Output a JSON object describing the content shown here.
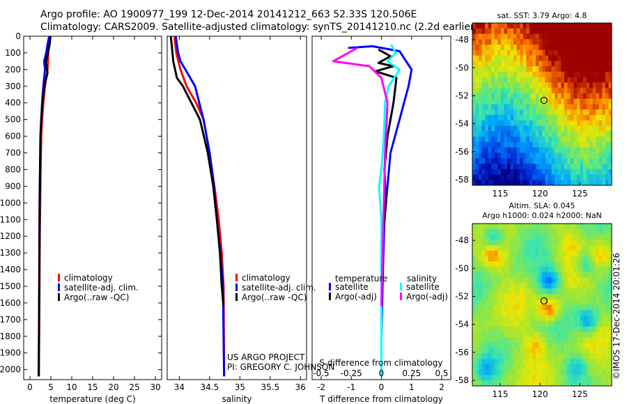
{
  "header": {
    "line1": "Argo profile: AO 1900977_199 12-Dec-2014 20141212_663 52.33S 120.506E",
    "line2": "Climatology: CARS2009. Satellite-adjusted climatology: synTS_20141210.nc (2.2d earlier)"
  },
  "colors": {
    "climatology": "#ff0000",
    "satellite": "#0000ff",
    "argo": "#000000",
    "satellite_salinity": "#00ffff",
    "argo_salinity": "#ff00ff"
  },
  "notes": {
    "project": "US ARGO PROJECT",
    "pi": "PI: GREGORY C. JOHNSON",
    "credit": "©IMOS 17-Dec-2014 20:01:26"
  },
  "chart_data": [
    {
      "type": "line",
      "id": "temperature",
      "xlabel": "temperature (deg C)",
      "ylabel": "",
      "xlim": [
        -1.5,
        31.5
      ],
      "ylim": [
        2060,
        0
      ],
      "xticks": [
        0,
        5,
        10,
        15,
        20,
        25,
        30
      ],
      "yticks": [
        0,
        100,
        200,
        300,
        400,
        500,
        600,
        700,
        800,
        900,
        1000,
        1100,
        1200,
        1300,
        1400,
        1500,
        1600,
        1700,
        1800,
        1900,
        2000
      ],
      "legend": [
        "climatology",
        "satellite-adj. clim.",
        "Argo(..raw -QC)"
      ],
      "series": [
        {
          "name": "climatology",
          "color": "#ff0000",
          "x": [
            4.3,
            4.4,
            4.2,
            3.6,
            3.2,
            2.9,
            2.7,
            2.55,
            2.45,
            2.35,
            2.3,
            2.25,
            2.2,
            2.1
          ],
          "y": [
            60,
            100,
            200,
            300,
            400,
            500,
            600,
            800,
            1000,
            1200,
            1400,
            1600,
            1800,
            2040
          ]
        },
        {
          "name": "satellite-adj. clim.",
          "color": "#0000ff",
          "x": [
            4.6,
            4.2,
            3.9,
            3.4,
            3.6,
            3.2,
            2.9,
            2.7,
            2.55,
            2.45,
            2.35,
            2.3,
            2.25,
            2.2,
            2.1
          ],
          "y": [
            0,
            50,
            100,
            150,
            200,
            300,
            400,
            500,
            600,
            800,
            1000,
            1200,
            1400,
            1600,
            2040
          ]
        },
        {
          "name": "Argo(..raw -QC)",
          "color": "#000000",
          "x": [
            4.9,
            4.7,
            4.3,
            3.8,
            4.2,
            3.4,
            3.0,
            2.7,
            2.5,
            2.4,
            2.3,
            2.25,
            2.2,
            2.1
          ],
          "y": [
            0,
            50,
            100,
            150,
            220,
            300,
            400,
            500,
            600,
            800,
            1000,
            1300,
            1600,
            2040
          ]
        }
      ]
    },
    {
      "type": "line",
      "id": "salinity",
      "xlabel": "salinity",
      "xlim": [
        33.8,
        36.1
      ],
      "ylim": [
        2060,
        0
      ],
      "xticks": [
        34,
        34.5,
        35,
        35.5,
        36
      ],
      "xtick_labels": [
        "34",
        "34.5",
        "35",
        "35.5",
        "36"
      ],
      "legend": [
        "climatology",
        "satellite-adj. clim.",
        "Argo(..raw -QC)"
      ],
      "series": [
        {
          "name": "climatology",
          "color": "#ff0000",
          "x": [
            33.92,
            33.95,
            34.02,
            34.12,
            34.28,
            34.4,
            34.5,
            34.58,
            34.65,
            34.7,
            34.73,
            34.74
          ],
          "y": [
            0,
            100,
            200,
            300,
            400,
            500,
            700,
            900,
            1100,
            1300,
            1500,
            2040
          ]
        },
        {
          "name": "satellite-adj. clim.",
          "color": "#0000ff",
          "x": [
            33.94,
            33.96,
            33.98,
            34.02,
            34.1,
            34.26,
            34.4,
            34.5,
            34.57,
            34.62,
            34.68,
            34.72,
            34.73,
            34.74
          ],
          "y": [
            0,
            50,
            100,
            150,
            200,
            300,
            500,
            700,
            900,
            1100,
            1300,
            1500,
            1800,
            2040
          ]
        },
        {
          "name": "Argo(..raw -QC)",
          "color": "#000000",
          "x": [
            33.86,
            33.9,
            33.96,
            34.06,
            34.2,
            34.34,
            34.47,
            34.56,
            34.62,
            34.67,
            34.7,
            34.73
          ],
          "y": [
            0,
            150,
            250,
            300,
            400,
            500,
            700,
            900,
            1100,
            1300,
            1500,
            1620
          ]
        }
      ]
    },
    {
      "type": "line",
      "id": "difference",
      "xlabel": "T difference from climatology",
      "xlabel_top": "S difference from climatology",
      "xlim": [
        -2.3,
        2.3
      ],
      "ylim": [
        2060,
        0
      ],
      "xticks": [
        -2,
        -1,
        0,
        1,
        2
      ],
      "xticks_s": [
        -0.5,
        -0.25,
        0,
        0.25,
        0.5
      ],
      "xtick_s_labels": [
        "-0.5",
        "-0.25",
        "0",
        "0.25",
        "0.5"
      ],
      "legend_groups": [
        "temperature",
        "salinity"
      ],
      "legend": [
        "satellite",
        "Argo(-adj)",
        "satellite",
        "Argo(-adj)"
      ],
      "series": [
        {
          "name": "satellite",
          "group": "temperature",
          "color": "#0000ff",
          "x": [
            -1.1,
            -0.3,
            0.6,
            1.0,
            0.9,
            0.75,
            0.6,
            0.45,
            0.3,
            0.2,
            0.1,
            0.05,
            0.0,
            0.0
          ],
          "y": [
            70,
            60,
            90,
            200,
            300,
            400,
            500,
            600,
            700,
            900,
            1100,
            1400,
            1800,
            2040
          ]
        },
        {
          "name": "Argo(-adj)",
          "group": "temperature",
          "color": "#000000",
          "x": [
            -0.1,
            0.3,
            -0.1,
            0.4,
            -0.2,
            0.5,
            0.4,
            0.2,
            0.1,
            0.15,
            0.0,
            0.0
          ],
          "y": [
            80,
            120,
            160,
            180,
            210,
            250,
            400,
            600,
            800,
            1000,
            1300,
            1620
          ]
        },
        {
          "name": "satellite",
          "group": "salinity",
          "color": "#00ffff",
          "x": [
            0.08,
            0.12,
            0.05,
            0.15,
            0.06,
            0.03,
            0.02,
            0.0,
            -0.02,
            0.0,
            0.0,
            0.0
          ],
          "y": [
            50,
            100,
            150,
            200,
            300,
            400,
            600,
            800,
            900,
            1100,
            1500,
            2040
          ]
        },
        {
          "name": "Argo(-adj)",
          "group": "salinity",
          "color": "#ff00ff",
          "x": [
            -0.2,
            -0.4,
            -0.1,
            0.0,
            0.05,
            0.03,
            0.02,
            0.01,
            0.0
          ],
          "y": [
            70,
            150,
            180,
            250,
            400,
            700,
            1000,
            1300,
            1620
          ]
        }
      ]
    },
    {
      "type": "heatmap",
      "id": "sst_map",
      "title": "sat. SST: 3.79 Argo: 4.8",
      "xlim": [
        111.5,
        129
      ],
      "ylim": [
        -58.4,
        -46.8
      ],
      "xticks": [
        115,
        120,
        125
      ],
      "yticks": [
        -48,
        -50,
        -52,
        -54,
        -56,
        -58
      ],
      "marker": [
        120.5,
        -52.33
      ]
    },
    {
      "type": "heatmap",
      "id": "sla_map",
      "title": "Altim. SLA: 0.045",
      "subtitle": "Argo h1000: 0.024 h2000: NaN",
      "xlim": [
        111.5,
        129
      ],
      "ylim": [
        -58.4,
        -46.8
      ],
      "xticks": [
        115,
        120,
        125
      ],
      "yticks": [
        -48,
        -50,
        -52,
        -54,
        -56,
        -58
      ],
      "marker": [
        120.5,
        -52.33
      ]
    }
  ]
}
